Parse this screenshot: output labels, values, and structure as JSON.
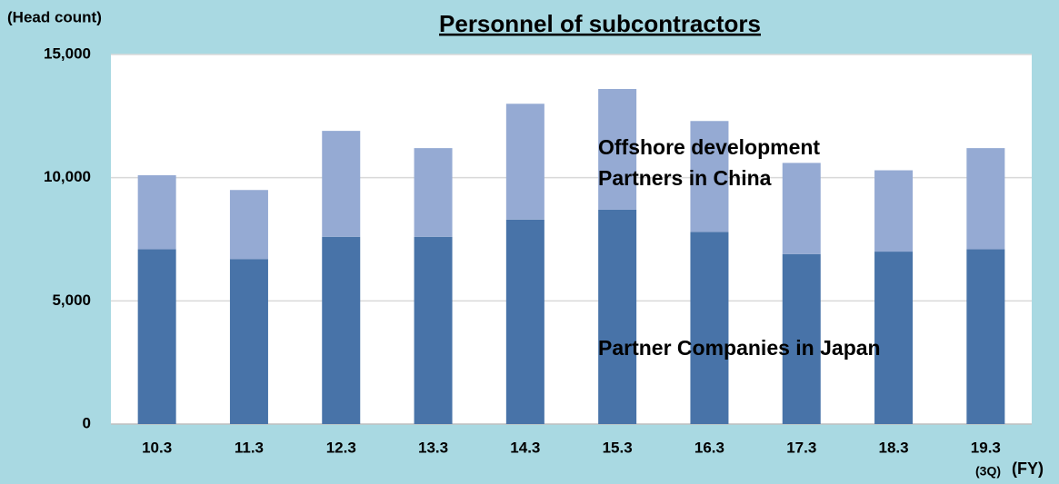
{
  "chart_data": {
    "type": "stacked_bar",
    "title": "Personnel of subcontractors",
    "y_label": "(Head count)",
    "x_label": "(FY)",
    "x_note": "(3Q)",
    "categories": [
      "10.3",
      "11.3",
      "12.3",
      "13.3",
      "14.3",
      "15.3",
      "16.3",
      "17.3",
      "18.3",
      "19.3"
    ],
    "series": [
      {
        "name": "Partner Companies in Japan",
        "color": "#4873a8",
        "values": [
          7100,
          6700,
          7600,
          7600,
          8300,
          8700,
          7800,
          6900,
          7000,
          7100
        ]
      },
      {
        "name": "Offshore development Partners in China",
        "color": "#95aad3",
        "values": [
          3000,
          2800,
          4300,
          3600,
          4700,
          4900,
          4500,
          3700,
          3300,
          4100
        ]
      }
    ],
    "ylim": [
      0,
      15000
    ],
    "yticks": [
      {
        "value": 0,
        "label": "0"
      },
      {
        "value": 5000,
        "label": "5,000"
      },
      {
        "value": 10000,
        "label": "10,000"
      },
      {
        "value": 15000,
        "label": "15,000"
      }
    ],
    "grid": true
  }
}
